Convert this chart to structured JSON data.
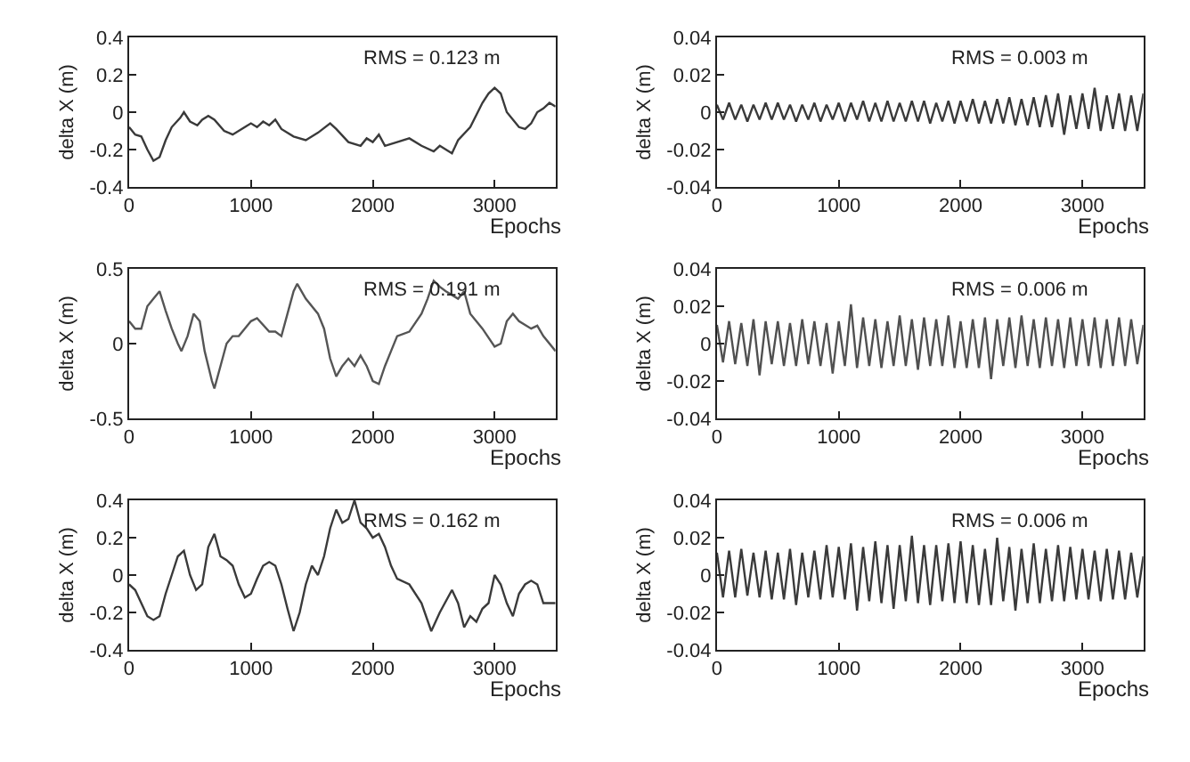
{
  "chart_data": [
    {
      "type": "line",
      "xlabel": "Epochs",
      "ylabel": "delta X (m)",
      "xlim": [
        0,
        3500
      ],
      "xticks": [
        0,
        1000,
        2000,
        3000
      ],
      "ylim": [
        -0.4,
        0.4
      ],
      "yticks": [
        0.4,
        0.2,
        0,
        -0.2,
        -0.4
      ],
      "annotations": [
        "RMS = 0.123 m"
      ],
      "x": [
        0,
        50,
        100,
        150,
        200,
        250,
        300,
        350,
        420,
        450,
        500,
        560,
        600,
        650,
        700,
        780,
        850,
        950,
        1000,
        1050,
        1100,
        1150,
        1200,
        1250,
        1350,
        1450,
        1550,
        1650,
        1700,
        1800,
        1900,
        1950,
        2000,
        2050,
        2100,
        2200,
        2300,
        2400,
        2500,
        2550,
        2600,
        2650,
        2700,
        2800,
        2900,
        2950,
        3000,
        3050,
        3100,
        3200,
        3250,
        3300,
        3350,
        3400,
        3450,
        3500
      ],
      "series": [
        {
          "color": "#3a3a3a",
          "values": [
            -0.08,
            -0.12,
            -0.13,
            -0.2,
            -0.26,
            -0.24,
            -0.15,
            -0.08,
            -0.03,
            0.0,
            -0.05,
            -0.07,
            -0.04,
            -0.02,
            -0.04,
            -0.1,
            -0.12,
            -0.08,
            -0.06,
            -0.08,
            -0.05,
            -0.07,
            -0.04,
            -0.09,
            -0.13,
            -0.15,
            -0.11,
            -0.06,
            -0.09,
            -0.16,
            -0.18,
            -0.14,
            -0.16,
            -0.12,
            -0.18,
            -0.16,
            -0.14,
            -0.18,
            -0.21,
            -0.18,
            -0.2,
            -0.22,
            -0.15,
            -0.08,
            0.05,
            0.1,
            0.13,
            0.1,
            0.0,
            -0.08,
            -0.09,
            -0.06,
            0.0,
            0.02,
            0.05,
            0.03
          ]
        }
      ]
    },
    {
      "type": "line",
      "xlabel": "Epochs",
      "ylabel": "delta X (m)",
      "xlim": [
        0,
        3500
      ],
      "xticks": [
        0,
        1000,
        2000,
        3000
      ],
      "ylim": [
        -0.5,
        0.5
      ],
      "yticks": [
        0.5,
        0,
        -0.5
      ],
      "annotations": [
        "RMS = 0.191 m"
      ],
      "x": [
        0,
        50,
        100,
        150,
        200,
        250,
        300,
        350,
        400,
        430,
        480,
        530,
        580,
        620,
        680,
        700,
        750,
        800,
        850,
        900,
        1000,
        1050,
        1150,
        1200,
        1250,
        1300,
        1350,
        1380,
        1450,
        1550,
        1600,
        1650,
        1700,
        1750,
        1800,
        1850,
        1900,
        1950,
        2000,
        2050,
        2100,
        2150,
        2200,
        2300,
        2400,
        2450,
        2500,
        2550,
        2600,
        2700,
        2750,
        2800,
        2900,
        3000,
        3050,
        3100,
        3150,
        3200,
        3300,
        3350,
        3400,
        3500
      ],
      "series": [
        {
          "color": "#555555",
          "values": [
            0.15,
            0.1,
            0.1,
            0.25,
            0.3,
            0.35,
            0.22,
            0.1,
            0.0,
            -0.05,
            0.05,
            0.2,
            0.15,
            -0.05,
            -0.25,
            -0.3,
            -0.15,
            0.0,
            0.05,
            0.05,
            0.15,
            0.17,
            0.08,
            0.08,
            0.05,
            0.2,
            0.35,
            0.4,
            0.3,
            0.2,
            0.1,
            -0.1,
            -0.22,
            -0.15,
            -0.1,
            -0.15,
            -0.08,
            -0.15,
            -0.25,
            -0.27,
            -0.15,
            -0.05,
            0.05,
            0.08,
            0.2,
            0.3,
            0.42,
            0.38,
            0.35,
            0.3,
            0.35,
            0.2,
            0.1,
            -0.02,
            0.0,
            0.15,
            0.2,
            0.15,
            0.1,
            0.12,
            0.05,
            -0.05
          ]
        }
      ]
    },
    {
      "type": "line",
      "xlabel": "Epochs",
      "ylabel": "delta X (m)",
      "xlim": [
        0,
        3500
      ],
      "xticks": [
        0,
        1000,
        2000,
        3000
      ],
      "ylim": [
        -0.4,
        0.4
      ],
      "yticks": [
        0.4,
        0.2,
        0,
        -0.2,
        -0.4
      ],
      "annotations": [
        "RMS = 0.162 m"
      ],
      "x": [
        0,
        50,
        100,
        150,
        200,
        250,
        300,
        350,
        400,
        450,
        500,
        550,
        600,
        650,
        700,
        750,
        800,
        850,
        900,
        950,
        1000,
        1050,
        1100,
        1150,
        1200,
        1250,
        1300,
        1350,
        1400,
        1450,
        1500,
        1550,
        1600,
        1650,
        1700,
        1750,
        1800,
        1850,
        1900,
        1950,
        2000,
        2050,
        2100,
        2150,
        2200,
        2300,
        2400,
        2480,
        2550,
        2650,
        2700,
        2750,
        2800,
        2850,
        2900,
        2950,
        3000,
        3050,
        3100,
        3150,
        3200,
        3250,
        3300,
        3350,
        3400,
        3500
      ],
      "series": [
        {
          "color": "#3a3a3a",
          "values": [
            -0.05,
            -0.08,
            -0.15,
            -0.22,
            -0.24,
            -0.22,
            -0.1,
            0.0,
            0.1,
            0.13,
            0.0,
            -0.08,
            -0.05,
            0.15,
            0.22,
            0.1,
            0.08,
            0.05,
            -0.05,
            -0.12,
            -0.1,
            -0.02,
            0.05,
            0.07,
            0.05,
            -0.05,
            -0.18,
            -0.3,
            -0.2,
            -0.05,
            0.05,
            0.0,
            0.1,
            0.25,
            0.35,
            0.28,
            0.3,
            0.4,
            0.28,
            0.25,
            0.2,
            0.22,
            0.15,
            0.05,
            -0.02,
            -0.05,
            -0.15,
            -0.3,
            -0.2,
            -0.08,
            -0.15,
            -0.28,
            -0.22,
            -0.25,
            -0.18,
            -0.15,
            0.0,
            -0.05,
            -0.15,
            -0.22,
            -0.1,
            -0.05,
            -0.03,
            -0.05,
            -0.15,
            -0.15
          ]
        }
      ]
    },
    {
      "type": "line",
      "xlabel": "Epochs",
      "ylabel": "delta X (m)",
      "xlim": [
        0,
        3500
      ],
      "xticks": [
        0,
        1000,
        2000,
        3000
      ],
      "ylim": [
        -0.04,
        0.04
      ],
      "yticks": [
        0.04,
        0.02,
        0,
        -0.02,
        -0.04
      ],
      "annotations": [
        "RMS = 0.003 m"
      ],
      "x": [
        0,
        50,
        100,
        150,
        200,
        250,
        300,
        350,
        400,
        450,
        500,
        550,
        600,
        650,
        700,
        750,
        800,
        850,
        900,
        950,
        1000,
        1050,
        1100,
        1150,
        1200,
        1250,
        1300,
        1350,
        1400,
        1450,
        1500,
        1550,
        1600,
        1650,
        1700,
        1750,
        1800,
        1850,
        1900,
        1950,
        2000,
        2050,
        2100,
        2150,
        2200,
        2250,
        2300,
        2350,
        2400,
        2450,
        2500,
        2550,
        2600,
        2650,
        2700,
        2750,
        2800,
        2850,
        2900,
        2950,
        3000,
        3050,
        3100,
        3150,
        3200,
        3250,
        3300,
        3350,
        3400,
        3450,
        3500
      ],
      "series": [
        {
          "color": "#3a3a3a",
          "values": [
            0.004,
            -0.004,
            0.005,
            -0.004,
            0.004,
            -0.005,
            0.004,
            -0.004,
            0.005,
            -0.004,
            0.005,
            -0.004,
            0.004,
            -0.005,
            0.004,
            -0.004,
            0.005,
            -0.005,
            0.004,
            -0.004,
            0.005,
            -0.005,
            0.005,
            -0.004,
            0.006,
            -0.005,
            0.005,
            -0.005,
            0.006,
            -0.005,
            0.005,
            -0.005,
            0.006,
            -0.005,
            0.006,
            -0.006,
            0.005,
            -0.005,
            0.006,
            -0.006,
            0.006,
            -0.005,
            0.007,
            -0.006,
            0.006,
            -0.006,
            0.007,
            -0.006,
            0.008,
            -0.007,
            0.007,
            -0.007,
            0.008,
            -0.008,
            0.009,
            -0.008,
            0.01,
            -0.012,
            0.009,
            -0.009,
            0.01,
            -0.009,
            0.013,
            -0.01,
            0.009,
            -0.009,
            0.01,
            -0.01,
            0.009,
            -0.01,
            0.01
          ]
        }
      ]
    },
    {
      "type": "line",
      "xlabel": "Epochs",
      "ylabel": "delta X (m)",
      "xlim": [
        0,
        3500
      ],
      "xticks": [
        0,
        1000,
        2000,
        3000
      ],
      "ylim": [
        -0.04,
        0.04
      ],
      "yticks": [
        0.04,
        0.02,
        0,
        -0.02,
        -0.04
      ],
      "annotations": [
        "RMS = 0.006 m"
      ],
      "x": [
        0,
        50,
        100,
        150,
        200,
        250,
        300,
        350,
        400,
        450,
        500,
        550,
        600,
        650,
        700,
        750,
        800,
        850,
        900,
        950,
        1000,
        1050,
        1100,
        1150,
        1200,
        1250,
        1300,
        1350,
        1400,
        1450,
        1500,
        1550,
        1600,
        1650,
        1700,
        1750,
        1800,
        1850,
        1900,
        1950,
        2000,
        2050,
        2100,
        2150,
        2200,
        2250,
        2300,
        2350,
        2400,
        2450,
        2500,
        2550,
        2600,
        2650,
        2700,
        2750,
        2800,
        2850,
        2900,
        2950,
        3000,
        3050,
        3100,
        3150,
        3200,
        3250,
        3300,
        3350,
        3400,
        3450,
        3500
      ],
      "series": [
        {
          "color": "#505050",
          "values": [
            0.01,
            -0.01,
            0.012,
            -0.011,
            0.011,
            -0.012,
            0.013,
            -0.017,
            0.012,
            -0.011,
            0.012,
            -0.012,
            0.011,
            -0.012,
            0.013,
            -0.011,
            0.012,
            -0.012,
            0.011,
            -0.016,
            0.012,
            -0.012,
            0.021,
            -0.013,
            0.014,
            -0.012,
            0.013,
            -0.013,
            0.012,
            -0.012,
            0.015,
            -0.012,
            0.013,
            -0.014,
            0.014,
            -0.012,
            0.013,
            -0.012,
            0.015,
            -0.013,
            0.012,
            -0.013,
            0.013,
            -0.013,
            0.014,
            -0.019,
            0.013,
            -0.012,
            0.014,
            -0.013,
            0.015,
            -0.012,
            0.013,
            -0.013,
            0.014,
            -0.012,
            0.013,
            -0.013,
            0.014,
            -0.012,
            0.013,
            -0.012,
            0.014,
            -0.013,
            0.013,
            -0.012,
            0.014,
            -0.012,
            0.013,
            -0.011,
            0.01
          ]
        }
      ]
    },
    {
      "type": "line",
      "xlabel": "Epochs",
      "ylabel": "delta X (m)",
      "xlim": [
        0,
        3500
      ],
      "xticks": [
        0,
        1000,
        2000,
        3000
      ],
      "ylim": [
        -0.04,
        0.04
      ],
      "yticks": [
        0.04,
        0.02,
        0,
        -0.02,
        -0.04
      ],
      "annotations": [
        "RMS = 0.006 m"
      ],
      "x": [
        0,
        50,
        100,
        150,
        200,
        250,
        300,
        350,
        400,
        450,
        500,
        550,
        600,
        650,
        700,
        750,
        800,
        850,
        900,
        950,
        1000,
        1050,
        1100,
        1150,
        1200,
        1250,
        1300,
        1350,
        1400,
        1450,
        1500,
        1550,
        1600,
        1650,
        1700,
        1750,
        1800,
        1850,
        1900,
        1950,
        2000,
        2050,
        2100,
        2150,
        2200,
        2250,
        2300,
        2350,
        2400,
        2450,
        2500,
        2550,
        2600,
        2650,
        2700,
        2750,
        2800,
        2850,
        2900,
        2950,
        3000,
        3050,
        3100,
        3150,
        3200,
        3250,
        3300,
        3350,
        3400,
        3450,
        3500
      ],
      "series": [
        {
          "color": "#3a3a3a",
          "values": [
            0.012,
            -0.012,
            0.013,
            -0.012,
            0.014,
            -0.011,
            0.012,
            -0.012,
            0.013,
            -0.013,
            0.012,
            -0.013,
            0.014,
            -0.016,
            0.012,
            -0.012,
            0.013,
            -0.013,
            0.016,
            -0.012,
            0.015,
            -0.013,
            0.017,
            -0.019,
            0.015,
            -0.014,
            0.018,
            -0.015,
            0.016,
            -0.018,
            0.016,
            -0.014,
            0.021,
            -0.015,
            0.016,
            -0.016,
            0.016,
            -0.014,
            0.017,
            -0.015,
            0.018,
            -0.015,
            0.016,
            -0.016,
            0.014,
            -0.016,
            0.02,
            -0.014,
            0.015,
            -0.019,
            0.014,
            -0.015,
            0.017,
            -0.015,
            0.014,
            -0.014,
            0.016,
            -0.014,
            0.015,
            -0.013,
            0.014,
            -0.013,
            0.013,
            -0.014,
            0.014,
            -0.013,
            0.013,
            -0.013,
            0.012,
            -0.012,
            0.01
          ]
        }
      ]
    }
  ]
}
